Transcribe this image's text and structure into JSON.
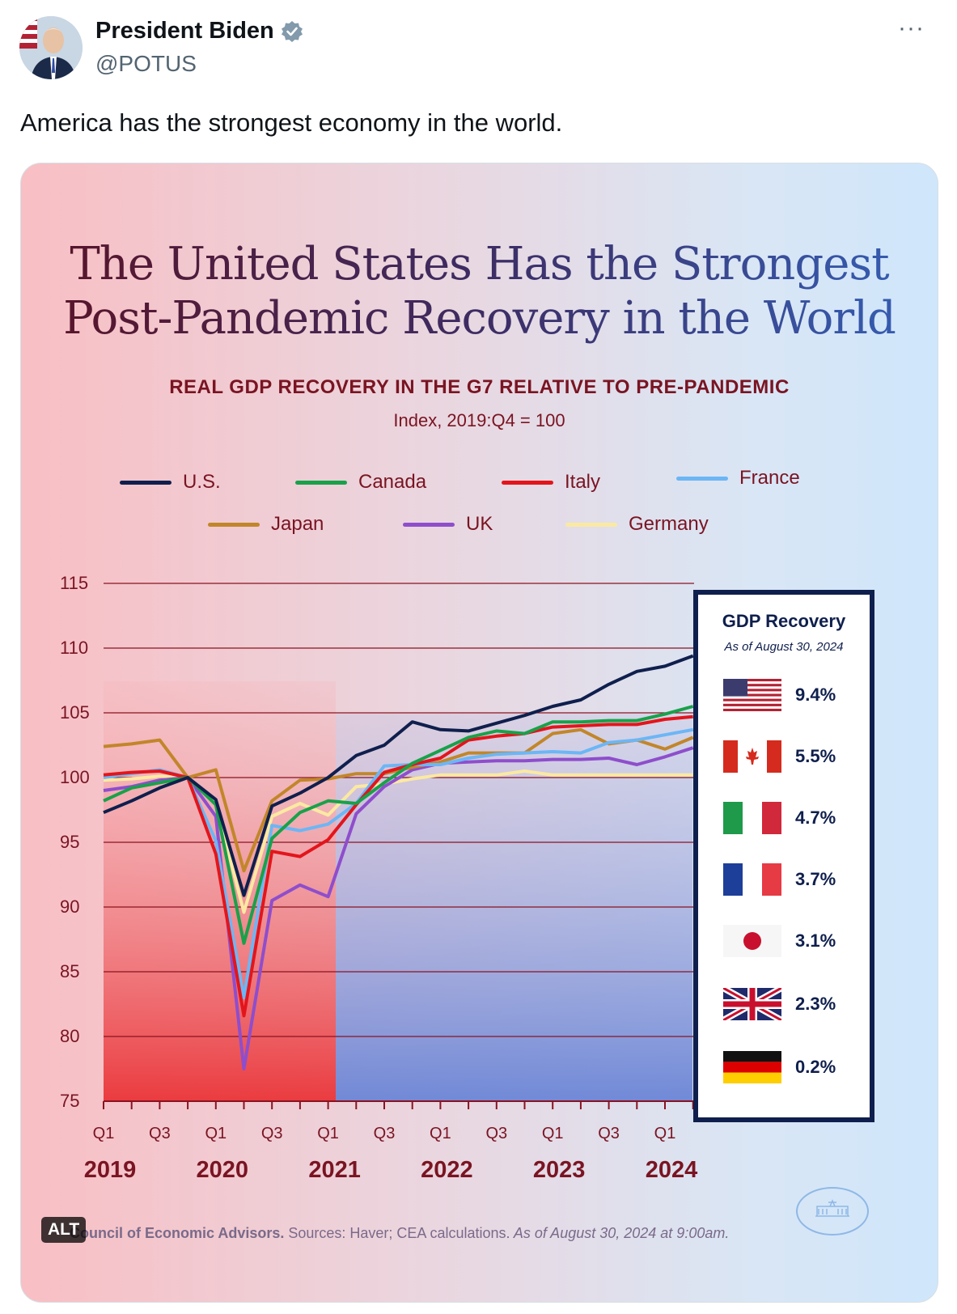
{
  "tweet": {
    "author_name": "President Biden",
    "handle": "@POTUS",
    "more": "···",
    "text": "America has the strongest economy in the world."
  },
  "card": {
    "headline_line1": "The United States Has the Strongest",
    "headline_line2": "Post-Pandemic Recovery in the World",
    "alt_badge": "ALT",
    "source_bold": "Council of Economic Advisors.",
    "source_rest": " Sources: Haver; CEA calculations.",
    "source_italic": " As of August 30, 2024 at 9:00am."
  },
  "panel": {
    "title": "GDP Recovery",
    "date": "As of August 30, 2024",
    "rows": [
      {
        "flag": "us-flag",
        "value": "9.4%"
      },
      {
        "flag": "canada-flag",
        "value": "5.5%"
      },
      {
        "flag": "italy-flag",
        "value": "4.7%"
      },
      {
        "flag": "france-flag",
        "value": "3.7%"
      },
      {
        "flag": "japan-flag",
        "value": "3.1%"
      },
      {
        "flag": "uk-flag",
        "value": "2.3%"
      },
      {
        "flag": "germany-flag",
        "value": "0.2%"
      }
    ]
  },
  "chart_data": {
    "type": "line",
    "title": "REAL GDP RECOVERY IN THE G7 RELATIVE TO PRE-PANDEMIC",
    "subtitle": "Index, 2019:Q4 = 100",
    "xlabel": "",
    "ylabel": "",
    "ylim": [
      75,
      115
    ],
    "yticks": [
      "115",
      "110",
      "105",
      "100",
      "95",
      "90",
      "85",
      "80",
      "75"
    ],
    "quarter_ticks": [
      "Q1",
      "Q3",
      "Q1",
      "Q3",
      "Q1",
      "Q3",
      "Q1",
      "Q3",
      "Q1",
      "Q3",
      "Q1"
    ],
    "years": [
      "2019",
      "2020",
      "2021",
      "2022",
      "2023",
      "2024"
    ],
    "x": [
      "2019Q1",
      "2019Q2",
      "2019Q3",
      "2019Q4",
      "2020Q1",
      "2020Q2",
      "2020Q3",
      "2020Q4",
      "2021Q1",
      "2021Q2",
      "2021Q3",
      "2021Q4",
      "2022Q1",
      "2022Q2",
      "2022Q3",
      "2022Q4",
      "2023Q1",
      "2023Q2",
      "2023Q3",
      "2023Q4",
      "2024Q1",
      "2024Q2"
    ],
    "grid": true,
    "legend": "top",
    "series": [
      {
        "name": "U.S.",
        "color": "#0f1f4d",
        "values": [
          97.3,
          98.2,
          99.2,
          100.0,
          98.3,
          90.9,
          97.8,
          98.8,
          100.0,
          101.7,
          102.5,
          104.3,
          103.7,
          103.6,
          104.2,
          104.8,
          105.5,
          106.0,
          107.2,
          108.2,
          108.6,
          109.4
        ]
      },
      {
        "name": "Canada",
        "color": "#19a14a",
        "values": [
          98.2,
          99.2,
          99.6,
          100.0,
          97.9,
          87.2,
          95.3,
          97.3,
          98.2,
          98.0,
          99.6,
          101.1,
          102.1,
          103.1,
          103.6,
          103.4,
          104.3,
          104.3,
          104.4,
          104.4,
          104.9,
          105.5
        ]
      },
      {
        "name": "Italy",
        "color": "#e3151b",
        "values": [
          100.2,
          100.4,
          100.5,
          100.0,
          94.1,
          81.6,
          94.3,
          93.9,
          95.2,
          97.9,
          100.4,
          101.0,
          101.5,
          102.9,
          103.2,
          103.4,
          103.9,
          104.0,
          104.1,
          104.1,
          104.5,
          104.7
        ]
      },
      {
        "name": "France",
        "color": "#6cb6f5",
        "values": [
          100.0,
          100.3,
          100.6,
          100.0,
          95.1,
          83.0,
          96.3,
          95.9,
          96.4,
          98.0,
          100.9,
          101.0,
          101.0,
          101.5,
          101.8,
          101.9,
          102.0,
          101.9,
          102.7,
          102.9,
          103.3,
          103.7
        ]
      },
      {
        "name": "Japan",
        "color": "#c2862a",
        "values": [
          102.4,
          102.6,
          102.9,
          100.0,
          100.6,
          92.8,
          98.2,
          99.8,
          99.9,
          100.3,
          100.3,
          100.8,
          101.2,
          101.9,
          101.9,
          101.9,
          103.4,
          103.7,
          102.6,
          102.9,
          102.2,
          103.1
        ]
      },
      {
        "name": "UK",
        "color": "#8e4ecc",
        "values": [
          99.0,
          99.3,
          99.8,
          100.0,
          97.0,
          77.5,
          90.5,
          91.7,
          90.8,
          97.2,
          99.3,
          100.6,
          101.1,
          101.2,
          101.3,
          101.3,
          101.4,
          101.4,
          101.5,
          101.0,
          101.6,
          102.3
        ]
      },
      {
        "name": "Germany",
        "color": "#fbe9a2",
        "values": [
          99.8,
          99.9,
          100.1,
          100.0,
          98.0,
          89.6,
          97.0,
          98.0,
          97.1,
          99.3,
          99.5,
          99.9,
          100.2,
          100.2,
          100.2,
          100.5,
          100.2,
          100.2,
          100.2,
          100.2,
          100.2,
          100.2
        ]
      }
    ]
  }
}
